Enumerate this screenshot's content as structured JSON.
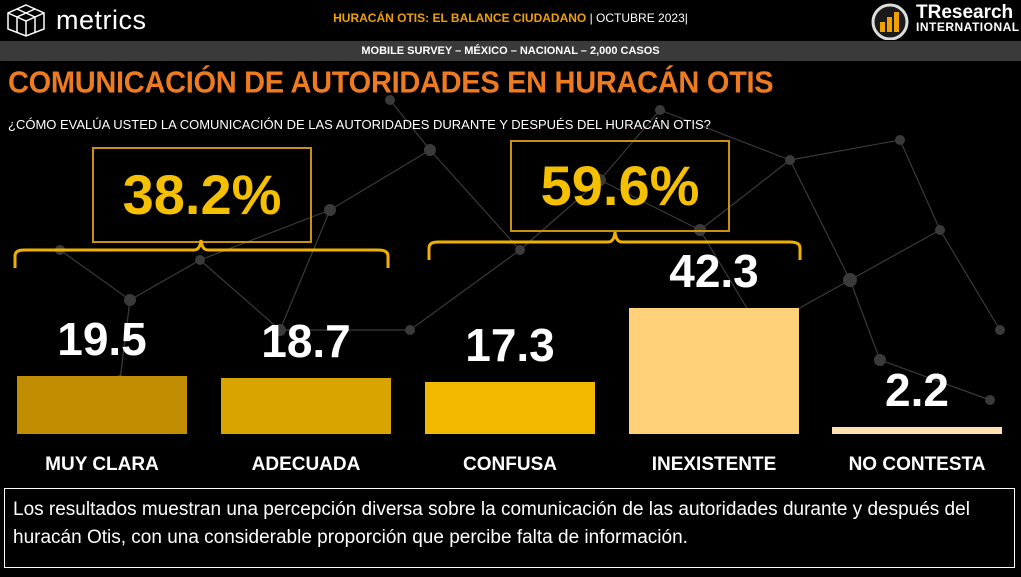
{
  "header": {
    "brand": "metrics",
    "center_title": "HURACÁN OTIS: EL BALANCE CIUDADANO",
    "center_sep": "|",
    "center_date": "OCTUBRE 2023|",
    "partner_logo_line1_a": "TR",
    "partner_logo_line1_b": "esearch",
    "partner_logo_line2": "INTERNATIONAL"
  },
  "survey_info": "MOBILE SURVEY – MÉXICO – NACIONAL – 2,000 CASOS",
  "title": "COMUNICACIÓN DE AUTORIDADES EN HURACÁN OTIS",
  "question": "¿CÓMO EVALÚA USTED LA COMUNICACIÓN DE LAS AUTORIDADES DURANTE Y DESPUÉS DEL HURACÁN OTIS?",
  "aggregates": [
    {
      "label": "38.2%"
    },
    {
      "label": "59.6%"
    }
  ],
  "colors": {
    "bar1": "#c08c00",
    "bar2": "#d9a400",
    "bar3": "#f2b800",
    "bar4": "#ffd27a",
    "bar5": "#ffe0b0",
    "accent_orange": "#ee7b1f",
    "accent_gold": "#f0a000"
  },
  "chart_data": {
    "type": "bar",
    "categories": [
      "MUY CLARA",
      "ADECUADA",
      "CONFUSA",
      "INEXISTENTE",
      "NO CONTESTA"
    ],
    "values": [
      19.5,
      18.7,
      17.3,
      42.3,
      2.2
    ],
    "value_labels": [
      "19.5",
      "18.7",
      "17.3",
      "42.3",
      "2.2"
    ],
    "title": "",
    "xlabel": "",
    "ylabel": "",
    "ylim": [
      0,
      42.3
    ],
    "grid": false,
    "legend": "none"
  },
  "summary": "Los resultados muestran una percepción diversa sobre la comunicación de las autoridades durante y después del huracán Otis, con una considerable proporción que percibe falta de información."
}
